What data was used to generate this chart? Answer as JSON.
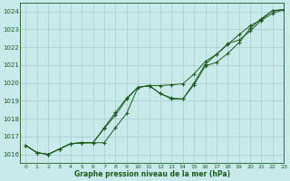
{
  "title": "Graphe pression niveau de la mer (hPa)",
  "bg_color": "#c8eaea",
  "grid_color": "#b0d0d0",
  "line_color": "#1a5c1a",
  "xlim": [
    -0.5,
    23
  ],
  "ylim": [
    1015.5,
    1024.5
  ],
  "yticks": [
    1016,
    1017,
    1018,
    1019,
    1020,
    1021,
    1022,
    1023,
    1024
  ],
  "xticks": [
    0,
    1,
    2,
    3,
    4,
    5,
    6,
    7,
    8,
    9,
    10,
    11,
    12,
    13,
    14,
    15,
    16,
    17,
    18,
    19,
    20,
    21,
    22,
    23
  ],
  "series": [
    [
      1016.5,
      1016.1,
      1016.0,
      1016.3,
      1016.6,
      1016.65,
      1016.65,
      1016.65,
      1017.5,
      1018.3,
      1019.75,
      1019.85,
      1019.85,
      1019.9,
      1019.95,
      1020.5,
      1021.2,
      1021.6,
      1022.2,
      1022.4,
      1022.9,
      1023.5,
      1023.9,
      1024.1
    ],
    [
      1016.5,
      1016.1,
      1016.0,
      1016.3,
      1016.6,
      1016.65,
      1016.65,
      1017.45,
      1018.2,
      1019.1,
      1019.75,
      1019.85,
      1019.4,
      1019.1,
      1019.1,
      1019.9,
      1020.95,
      1021.15,
      1021.65,
      1022.25,
      1023.05,
      1023.6,
      1024.05,
      1024.1
    ],
    [
      1016.5,
      1016.1,
      1016.0,
      1016.3,
      1016.6,
      1016.65,
      1016.65,
      1017.5,
      1018.35,
      1019.15,
      1019.75,
      1019.85,
      1019.4,
      1019.15,
      1019.1,
      1020.0,
      1021.05,
      1021.6,
      1022.15,
      1022.7,
      1023.2,
      1023.55,
      1024.05,
      1024.1
    ]
  ]
}
